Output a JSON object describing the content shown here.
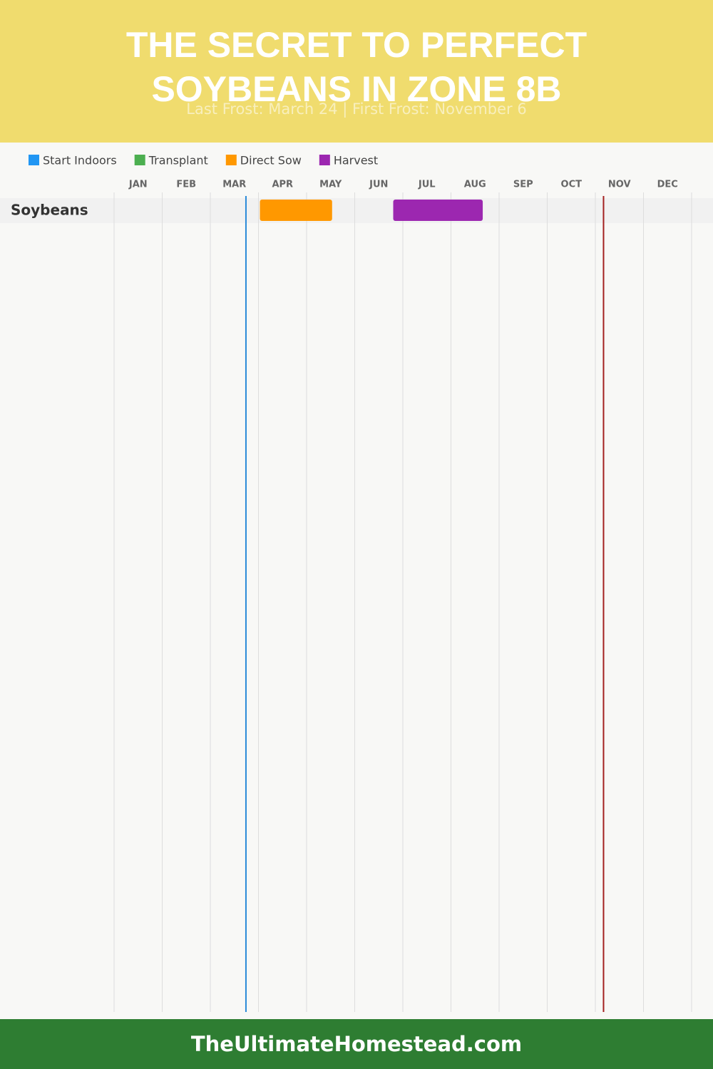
{
  "chart_data": {
    "type": "gantt",
    "title": "THE SECRET TO PERFECT SOYBEANS IN ZONE 8B",
    "subtitle": "Last Frost: March 24 | First Frost: November 6",
    "footer": "TheUltimateHomestead.com",
    "categories": [
      "Soybeans"
    ],
    "series": [
      {
        "name": "Start Indoors",
        "color": "#2196f3",
        "values": [
          null
        ]
      },
      {
        "name": "Transplant",
        "color": "#4caf50",
        "values": [
          null
        ]
      },
      {
        "name": "Direct Sow",
        "color": "#ff9800",
        "values": [
          [
            3.03,
            4.53
          ]
        ]
      },
      {
        "name": "Harvest",
        "color": "#9c27b0",
        "values": [
          [
            5.8,
            7.66
          ]
        ]
      }
    ],
    "xlim": [
      0,
      12
    ],
    "xticks": [
      {
        "value": 0,
        "label": "JAN"
      },
      {
        "value": 1,
        "label": "FEB"
      },
      {
        "value": 2,
        "label": "MAR"
      },
      {
        "value": 3,
        "label": "APR"
      },
      {
        "value": 4,
        "label": "MAY"
      },
      {
        "value": 5,
        "label": "JUN"
      },
      {
        "value": 6,
        "label": "JUL"
      },
      {
        "value": 7,
        "label": "AUG"
      },
      {
        "value": 8,
        "label": "SEP"
      },
      {
        "value": 9,
        "label": "OCT"
      },
      {
        "value": 10,
        "label": "NOV"
      },
      {
        "value": 11,
        "label": "DEC"
      }
    ],
    "last_frost": 2.74,
    "first_frost": 10.17,
    "grid": true
  }
}
